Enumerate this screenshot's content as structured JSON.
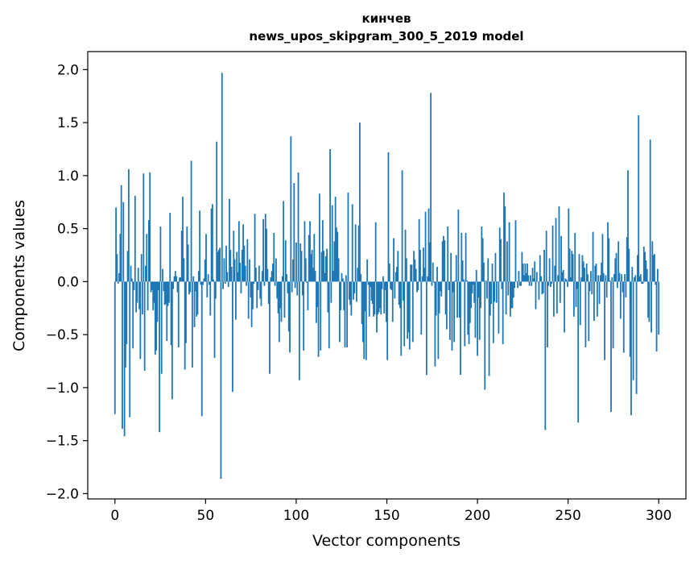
{
  "chart_data": {
    "type": "bar",
    "title": "кинчев",
    "subtitle": "news_upos_skipgram_300_5_2019 model",
    "xlabel": "Vector components",
    "ylabel": "Components values",
    "xlim": [
      -15,
      315
    ],
    "ylim": [
      -2.05,
      2.17
    ],
    "xticks": [
      0,
      50,
      100,
      150,
      200,
      250,
      300
    ],
    "xtick_labels": [
      "0",
      "50",
      "100",
      "150",
      "200",
      "250",
      "300"
    ],
    "yticks": [
      -2.0,
      -1.5,
      -1.0,
      -0.5,
      0.0,
      0.5,
      1.0,
      1.5,
      2.0
    ],
    "ytick_labels": [
      "−2.0",
      "−1.5",
      "−1.0",
      "−0.5",
      "0.0",
      "0.5",
      "1.0",
      "1.5",
      "2.0"
    ],
    "bar_color": "#1f77b4",
    "bar_width": 0.8,
    "values": [
      -1.25,
      0.7,
      0.26,
      -0.02,
      0.08,
      0.45,
      0.91,
      -1.39,
      0.75,
      -1.46,
      -0.81,
      -0.59,
      0.29,
      1.06,
      -1.28,
      0.15,
      0.03,
      -0.63,
      -0.08,
      0.81,
      -0.29,
      -0.2,
      0.13,
      -0.26,
      -0.73,
      0.26,
      -0.31,
      1.02,
      -0.84,
      0.15,
      0.45,
      -0.27,
      0.58,
      1.03,
      -0.1,
      -0.08,
      -0.27,
      -0.2,
      -0.69,
      -0.65,
      -0.38,
      -0.08,
      -1.42,
      0.52,
      -0.87,
      0.12,
      -0.09,
      -0.22,
      -0.21,
      -0.56,
      -0.23,
      -0.2,
      0.65,
      -0.6,
      -1.11,
      -0.07,
      0.05,
      0.1,
      0.05,
      -0.1,
      -0.62,
      0.04,
      0.04,
      0.48,
      0.8,
      0.22,
      -0.83,
      -0.58,
      0.52,
      0.35,
      -0.12,
      -0.1,
      1.14,
      -0.81,
      0.05,
      -0.43,
      -0.09,
      -0.33,
      -0.31,
      0.1,
      0.67,
      -0.03,
      -1.27,
      -0.03,
      0.03,
      0.21,
      0.45,
      -0.15,
      0.07,
      -0.03,
      -0.32,
      0.69,
      0.73,
      0.02,
      -0.72,
      -0.16,
      1.32,
      0.28,
      0.3,
      0.32,
      -1.86,
      1.97,
      -0.07,
      0.22,
      -0.02,
      0.34,
      0.09,
      -0.05,
      0.78,
      0.3,
      0.14,
      -1.04,
      0.48,
      0.21,
      -0.36,
      0.28,
      0.09,
      0.57,
      0.18,
      -0.11,
      0.3,
      0.54,
      0.34,
      0.15,
      -0.04,
      0.4,
      -0.35,
      0.21,
      -0.15,
      -0.43,
      -0.26,
      -0.02,
      0.64,
      0.13,
      -0.25,
      -0.08,
      0.15,
      -0.16,
      -0.23,
      0.1,
      0.59,
      -0.04,
      0.64,
      0.5,
      0.12,
      -0.21,
      -0.87,
      0.04,
      0.1,
      0.17,
      0.46,
      -0.04,
      0.22,
      -0.16,
      -0.3,
      -0.57,
      -0.25,
      -0.38,
      0.05,
      0.76,
      -0.34,
      0.39,
      0.07,
      -0.11,
      -0.47,
      -0.67,
      1.37,
      -0.1,
      0.21,
      0.93,
      -0.06,
      0.37,
      -0.13,
      1.03,
      -0.93,
      0.36,
      0.29,
      -0.13,
      -0.65,
      0.57,
      0.22,
      -0.01,
      -0.27,
      0.44,
      0.57,
      0.26,
      0.3,
      0.13,
      0.45,
      0.1,
      -0.39,
      -0.24,
      -0.71,
      0.83,
      -0.65,
      0.28,
      0.58,
      0.29,
      0.08,
      0.24,
      0.31,
      -0.29,
      -0.63,
      1.25,
      -0.2,
      0.72,
      0.1,
      0.38,
      0.8,
      0.51,
      0.47,
      0.22,
      -0.57,
      -0.27,
      0.08,
      0.03,
      -0.27,
      -0.62,
      0.06,
      -0.62,
      0.84,
      -0.17,
      -0.22,
      -0.32,
      0.73,
      -0.17,
      -0.11,
      0.54,
      -0.19,
      0.13,
      0.53,
      1.5,
      0.07,
      -0.4,
      -0.57,
      -0.73,
      -0.28,
      -0.74,
      0.21,
      -0.03,
      -0.33,
      -0.05,
      -0.18,
      -0.21,
      -0.33,
      -0.31,
      0.56,
      -0.48,
      -0.31,
      -0.29,
      -0.25,
      -0.31,
      -0.07,
      0.05,
      -0.3,
      -0.08,
      -0.38,
      -0.74,
      1.22,
      0.17,
      -0.07,
      -0.08,
      -0.38,
      0.41,
      -0.16,
      0.09,
      0.14,
      0.29,
      -0.22,
      -0.25,
      -0.7,
      1.05,
      -0.18,
      -0.61,
      0.49,
      0.22,
      -0.54,
      -0.48,
      -0.64,
      0.16,
      0.16,
      -0.57,
      0.29,
      0.21,
      0.12,
      -0.1,
      -0.08,
      0.59,
      0.3,
      -0.5,
      0.05,
      0.32,
      0.13,
      0.66,
      -0.88,
      0.05,
      0.69,
      0.37,
      1.78,
      -0.04,
      0.18,
      -0.01,
      -0.8,
      -0.32,
      0.14,
      -0.73,
      -0.3,
      -0.09,
      -0.14,
      0.38,
      0.43,
      0.39,
      -0.31,
      -0.45,
      0.52,
      -0.08,
      -0.55,
      0.27,
      -0.65,
      -0.1,
      -0.57,
      0.01,
      0.25,
      -0.34,
      0.68,
      -0.34,
      -0.88,
      0.46,
      0.2,
      0.02,
      -0.61,
      0.46,
      0.01,
      -0.5,
      -0.59,
      -0.39,
      -0.25,
      -0.11,
      -0.03,
      -0.2,
      -0.53,
      0.11,
      -0.7,
      -0.15,
      -0.55,
      -0.25,
      0.52,
      0.41,
      0.18,
      -1.02,
      0.01,
      -0.16,
      0.22,
      -0.89,
      -0.32,
      -0.21,
      0.17,
      -0.58,
      -0.19,
      0.27,
      -0.2,
      0.0,
      -0.49,
      0.51,
      0.4,
      -0.07,
      -0.59,
      0.84,
      0.71,
      -0.31,
      0.38,
      -0.13,
      0.56,
      -0.33,
      -0.25,
      -0.25,
      -0.15,
      -0.06,
      0.58,
      0.0,
      -0.06,
      0.1,
      -0.04,
      -0.04,
      0.28,
      0.17,
      0.06,
      0.17,
      0.08,
      0.17,
      0.06,
      -0.04,
      0.06,
      -0.04,
      0.13,
      0.03,
      0.19,
      -0.26,
      0.09,
      0.0,
      -0.17,
      0.25,
      0.05,
      -0.12,
      -0.11,
      0.3,
      -1.4,
      0.48,
      -0.62,
      -0.04,
      0.22,
      -0.05,
      -0.02,
      0.53,
      -0.33,
      0.15,
      0.6,
      -0.3,
      0.06,
      0.71,
      -0.2,
      0.43,
      0.09,
      0.11,
      -0.48,
      0.03,
      0.02,
      -0.05,
      0.69,
      0.31,
      0.04,
      0.29,
      0.26,
      -0.33,
      0.46,
      -0.24,
      -0.07,
      -1.33,
      0.26,
      -0.41,
      0.04,
      0.25,
      0.19,
      0.13,
      -0.62,
      0.17,
      0.07,
      -0.56,
      -0.09,
      0.1,
      -0.12,
      0.47,
      -0.37,
      0.15,
      0.17,
      -0.33,
      0.06,
      -0.21,
      0.06,
      0.18,
      0.45,
      0.08,
      -0.74,
      0.06,
      -0.15,
      0.56,
      0.41,
      0.01,
      -1.23,
      0.04,
      -0.63,
      0.07,
      0.22,
      0.27,
      -0.06,
      0.38,
      0.08,
      -0.35,
      0.07,
      -0.1,
      -0.67,
      0.07,
      -0.15,
      0.42,
      1.05,
      0.31,
      -0.71,
      -1.26,
      0.14,
      -0.93,
      0.04,
      0.06,
      -1.06,
      0.25,
      1.57,
      0.05,
      0.07,
      -0.02,
      -0.02,
      0.33,
      0.28,
      0.2,
      0.12,
      -0.34,
      -0.38,
      1.34,
      -0.48,
      0.38,
      0.25,
      0.26,
      -0.03,
      -0.66,
      0.12,
      -0.5
    ]
  }
}
